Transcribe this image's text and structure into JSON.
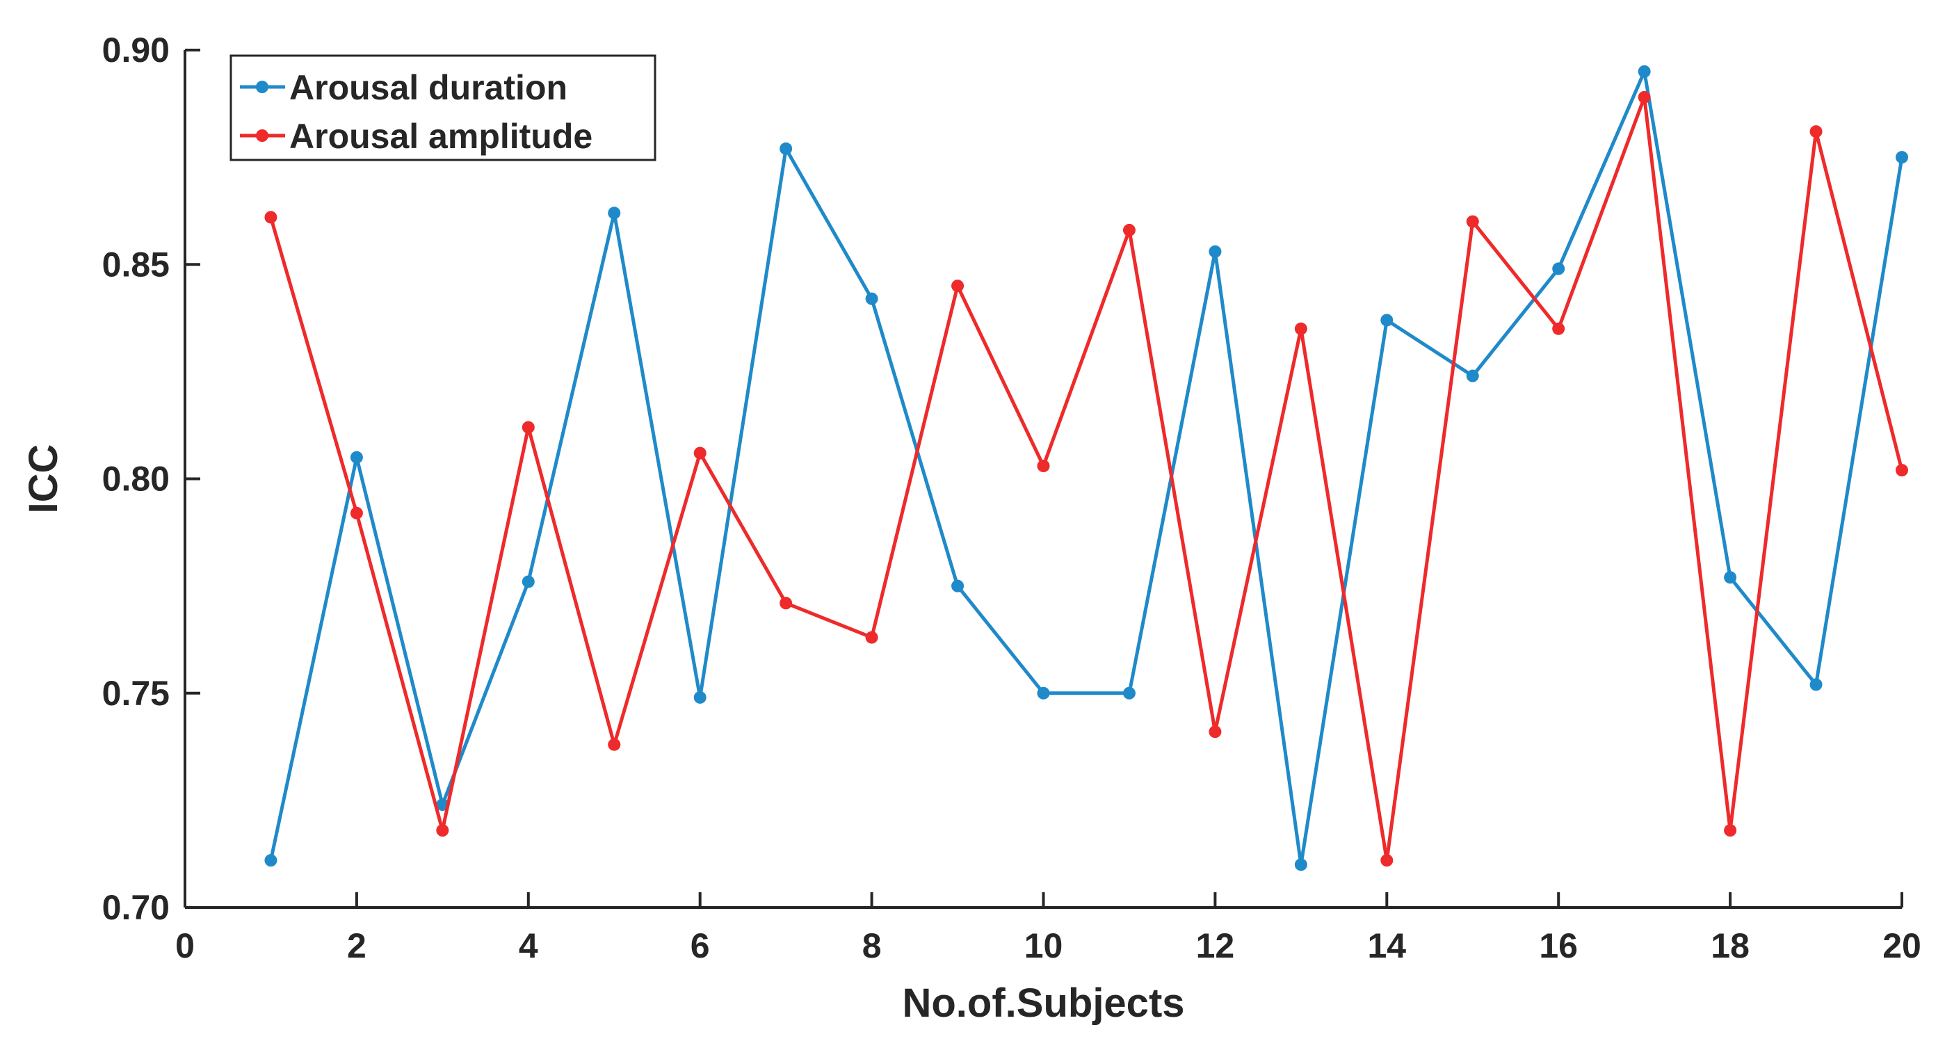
{
  "chart_data": {
    "type": "line",
    "xlabel": "No.of.Subjects",
    "ylabel": "ICC",
    "xlim": [
      0,
      20
    ],
    "ylim": [
      0.7,
      0.9
    ],
    "xticks": [
      0,
      2,
      4,
      6,
      8,
      10,
      12,
      14,
      16,
      18,
      20
    ],
    "yticks": [
      0.7,
      0.75,
      0.8,
      0.85,
      0.9
    ],
    "xtick_labels": [
      "0",
      "2",
      "4",
      "6",
      "8",
      "10",
      "12",
      "14",
      "16",
      "18",
      "20"
    ],
    "ytick_labels": [
      "0.70",
      "0.75",
      "0.80",
      "0.85",
      "0.90"
    ],
    "grid": false,
    "legend_position": "top-left",
    "x": [
      1,
      2,
      3,
      4,
      5,
      6,
      7,
      8,
      9,
      10,
      11,
      12,
      13,
      14,
      15,
      16,
      17,
      18,
      19,
      20
    ],
    "series": [
      {
        "name": "Arousal duration",
        "color": "#1f8ac9",
        "values": [
          0.711,
          0.805,
          0.724,
          0.776,
          0.862,
          0.749,
          0.877,
          0.842,
          0.775,
          0.75,
          0.75,
          0.853,
          0.71,
          0.837,
          0.824,
          0.849,
          0.895,
          0.777,
          0.752,
          0.875
        ]
      },
      {
        "name": "Arousal amplitude",
        "color": "#ee2a2a",
        "values": [
          0.861,
          0.792,
          0.718,
          0.812,
          0.738,
          0.806,
          0.771,
          0.763,
          0.845,
          0.803,
          0.858,
          0.741,
          0.835,
          0.711,
          0.86,
          0.835,
          0.889,
          0.718,
          0.881,
          0.802
        ]
      }
    ]
  }
}
